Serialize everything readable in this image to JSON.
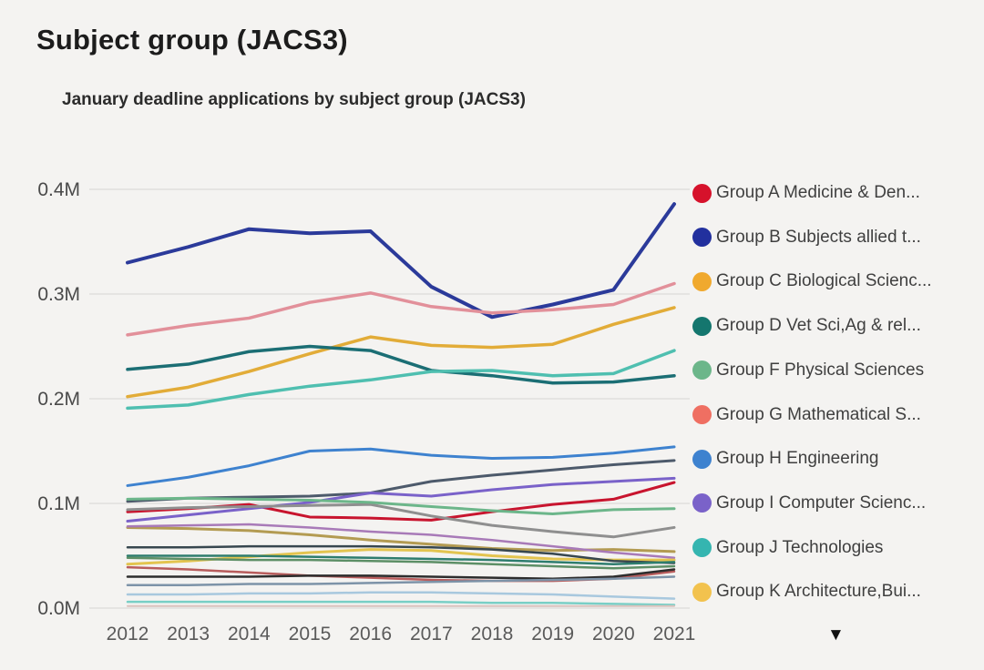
{
  "page": {
    "title": "Subject group (JACS3)"
  },
  "icons": {
    "legend_scroll_down": "▼"
  },
  "chart_data": {
    "type": "line",
    "title": "January deadline applications by subject group (JACS3)",
    "x": [
      "2012",
      "2013",
      "2014",
      "2015",
      "2016",
      "2017",
      "2018",
      "2019",
      "2020",
      "2021"
    ],
    "xlabel": "",
    "ylabel": "",
    "y_ticks": [
      "0.0M",
      "0.1M",
      "0.2M",
      "0.3M",
      "0.4M"
    ],
    "ylim": [
      0,
      0.4
    ],
    "unit": "M applications",
    "grid": true,
    "legend_position": "right",
    "legend": [
      {
        "label": "Group A Medicine & Den...",
        "color": "#d6122b"
      },
      {
        "label": "Group B Subjects allied t...",
        "color": "#22309e"
      },
      {
        "label": "Group C Biological Scienc...",
        "color": "#f0a92e"
      },
      {
        "label": "Group D Vet Sci,Ag & rel...",
        "color": "#14766e"
      },
      {
        "label": "Group F Physical Sciences",
        "color": "#6cb68a"
      },
      {
        "label": "Group G Mathematical S...",
        "color": "#ef6f62"
      },
      {
        "label": "Group H Engineering",
        "color": "#3e82cf"
      },
      {
        "label": "Group I Computer Scienc...",
        "color": "#7a62c9"
      },
      {
        "label": "Group J Technologies",
        "color": "#35b5b0"
      },
      {
        "label": "Group K Architecture,Bui...",
        "color": "#f2c24e"
      }
    ],
    "series": [
      {
        "id": "group-b-navy",
        "color": "#2b3a9a",
        "width": 4,
        "values": [
          0.33,
          0.345,
          0.362,
          0.358,
          0.36,
          0.307,
          0.278,
          0.29,
          0.304,
          0.386
        ]
      },
      {
        "id": "rose-pink",
        "color": "#e2909a",
        "width": 3.5,
        "values": [
          0.261,
          0.27,
          0.277,
          0.292,
          0.301,
          0.288,
          0.282,
          0.285,
          0.29,
          0.31
        ]
      },
      {
        "id": "group-c-amber",
        "color": "#e2ac38",
        "width": 3.5,
        "values": [
          0.202,
          0.211,
          0.226,
          0.243,
          0.259,
          0.251,
          0.249,
          0.252,
          0.271,
          0.287
        ]
      },
      {
        "id": "group-d-darkteal",
        "color": "#1b6e74",
        "width": 3.5,
        "values": [
          0.228,
          0.233,
          0.245,
          0.25,
          0.246,
          0.227,
          0.222,
          0.215,
          0.216,
          0.222
        ]
      },
      {
        "id": "light-teal",
        "color": "#4fbfb0",
        "width": 3.5,
        "values": [
          0.191,
          0.194,
          0.204,
          0.212,
          0.218,
          0.226,
          0.227,
          0.222,
          0.224,
          0.246
        ]
      },
      {
        "id": "group-h-blue",
        "color": "#3e82cf",
        "width": 3,
        "values": [
          0.117,
          0.125,
          0.136,
          0.15,
          0.152,
          0.146,
          0.143,
          0.144,
          0.148,
          0.154
        ]
      },
      {
        "id": "slate",
        "color": "#4d5a6b",
        "width": 3,
        "values": [
          0.102,
          0.105,
          0.106,
          0.107,
          0.11,
          0.121,
          0.127,
          0.132,
          0.137,
          0.141
        ]
      },
      {
        "id": "group-a-crimson",
        "color": "#c8142e",
        "width": 3,
        "values": [
          0.092,
          0.095,
          0.099,
          0.087,
          0.086,
          0.084,
          0.092,
          0.099,
          0.104,
          0.12
        ]
      },
      {
        "id": "group-i-purple",
        "color": "#7a62c9",
        "width": 3,
        "values": [
          0.083,
          0.089,
          0.095,
          0.101,
          0.11,
          0.107,
          0.113,
          0.118,
          0.121,
          0.124
        ]
      },
      {
        "id": "gray",
        "color": "#8f8f8f",
        "width": 3,
        "values": [
          0.094,
          0.096,
          0.097,
          0.098,
          0.099,
          0.088,
          0.079,
          0.073,
          0.068,
          0.077
        ]
      },
      {
        "id": "group-f-green",
        "color": "#6cb68a",
        "width": 3,
        "values": [
          0.104,
          0.105,
          0.104,
          0.103,
          0.101,
          0.097,
          0.093,
          0.09,
          0.094,
          0.095
        ]
      },
      {
        "id": "khaki",
        "color": "#b39b52",
        "width": 3,
        "values": [
          0.077,
          0.076,
          0.074,
          0.07,
          0.065,
          0.061,
          0.057,
          0.055,
          0.056,
          0.054
        ]
      },
      {
        "id": "orchid",
        "color": "#a87ab8",
        "width": 2.5,
        "values": [
          0.078,
          0.079,
          0.08,
          0.077,
          0.073,
          0.07,
          0.065,
          0.059,
          0.053,
          0.048
        ]
      },
      {
        "id": "group-k-yellow",
        "color": "#e3c44f",
        "width": 3,
        "values": [
          0.042,
          0.045,
          0.049,
          0.053,
          0.056,
          0.055,
          0.05,
          0.047,
          0.046,
          0.046
        ]
      },
      {
        "id": "dark-slate",
        "color": "#37474f",
        "width": 2.5,
        "values": [
          0.058,
          0.058,
          0.059,
          0.059,
          0.059,
          0.058,
          0.056,
          0.052,
          0.045,
          0.043
        ]
      },
      {
        "id": "pine-teal",
        "color": "#2e7d6e",
        "width": 2.5,
        "values": [
          0.05,
          0.05,
          0.05,
          0.049,
          0.048,
          0.047,
          0.046,
          0.044,
          0.042,
          0.044
        ]
      },
      {
        "id": "moss-green",
        "color": "#5d8f66",
        "width": 2.5,
        "values": [
          0.048,
          0.047,
          0.046,
          0.046,
          0.045,
          0.044,
          0.042,
          0.04,
          0.038,
          0.04
        ]
      },
      {
        "id": "brick",
        "color": "#b85c5c",
        "width": 2.5,
        "values": [
          0.039,
          0.037,
          0.034,
          0.031,
          0.029,
          0.027,
          0.026,
          0.026,
          0.028,
          0.035
        ]
      },
      {
        "id": "black",
        "color": "#2d2d2d",
        "width": 2.5,
        "values": [
          0.03,
          0.03,
          0.03,
          0.031,
          0.031,
          0.03,
          0.029,
          0.028,
          0.03,
          0.037
        ]
      },
      {
        "id": "blue-gray",
        "color": "#7d93a8",
        "width": 2.5,
        "values": [
          0.022,
          0.022,
          0.023,
          0.023,
          0.024,
          0.025,
          0.026,
          0.027,
          0.028,
          0.03
        ]
      },
      {
        "id": "pale-blue",
        "color": "#a8c8de",
        "width": 2.5,
        "values": [
          0.013,
          0.013,
          0.014,
          0.014,
          0.015,
          0.015,
          0.014,
          0.013,
          0.011,
          0.009
        ]
      },
      {
        "id": "pale-teal",
        "color": "#79cfc6",
        "width": 2.5,
        "values": [
          0.006,
          0.006,
          0.006,
          0.006,
          0.006,
          0.006,
          0.005,
          0.005,
          0.004,
          0.003
        ]
      },
      {
        "id": "pale-pink",
        "color": "#d9c2bd",
        "width": 2,
        "values": [
          0.002,
          0.002,
          0.002,
          0.002,
          0.002,
          0.002,
          0.002,
          0.002,
          0.002,
          0.002
        ]
      }
    ]
  }
}
